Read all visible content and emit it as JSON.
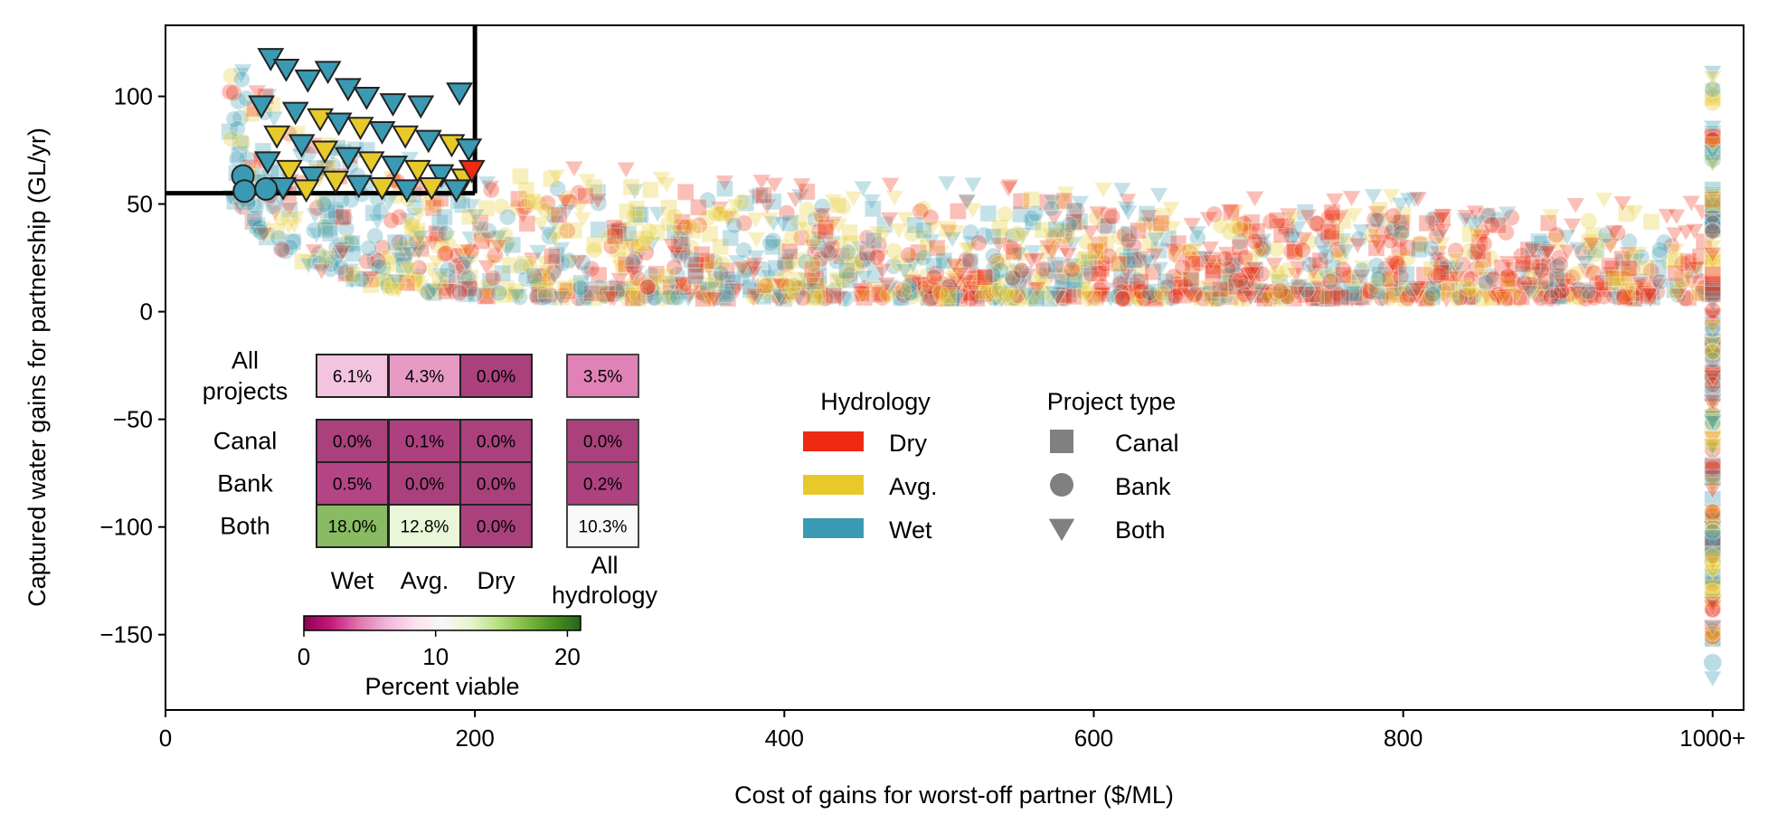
{
  "chart_data": {
    "type": "scatter",
    "title": "",
    "xlabel": "Cost of gains for worst-off partner ($/ML)",
    "ylabel": "Captured water gains for partnership (GL/yr)",
    "xlim": [
      0,
      1020
    ],
    "ylim": [
      -185,
      133
    ],
    "x_ticks": [
      0,
      200,
      400,
      600,
      800,
      1000
    ],
    "x_tick_labels": [
      "0",
      "200",
      "400",
      "600",
      "800",
      "1000+"
    ],
    "y_ticks": [
      -150,
      -100,
      -50,
      0,
      50,
      100
    ],
    "y_tick_labels": [
      "−150",
      "−100",
      "−50",
      "0",
      "50",
      "100"
    ],
    "grid": false,
    "thresholds": {
      "max_cost": 200,
      "min_gain": 55
    },
    "colors": {
      "Dry": "#ee2a12",
      "Avg.": "#e8c92a",
      "Wet": "#3a9ab3"
    },
    "hydrology_legend": {
      "title": "Hydrology",
      "entries": [
        "Dry",
        "Avg.",
        "Wet"
      ]
    },
    "project_type_legend": {
      "title": "Project type",
      "entries": [
        {
          "label": "Canal",
          "marker": "square"
        },
        {
          "label": "Bank",
          "marker": "circle"
        },
        {
          "label": "Both",
          "marker": "triangle-down"
        }
      ]
    },
    "series_note_markers": {
      "Canal": "square",
      "Bank": "circle",
      "Both": "triangle-down"
    },
    "highlighted_points": [
      {
        "x": 68,
        "y": 118,
        "hydro": "Wet",
        "type": "Both"
      },
      {
        "x": 78,
        "y": 113,
        "hydro": "Wet",
        "type": "Both"
      },
      {
        "x": 92,
        "y": 108,
        "hydro": "Wet",
        "type": "Both"
      },
      {
        "x": 105,
        "y": 112,
        "hydro": "Wet",
        "type": "Both"
      },
      {
        "x": 118,
        "y": 104,
        "hydro": "Wet",
        "type": "Both"
      },
      {
        "x": 130,
        "y": 100,
        "hydro": "Wet",
        "type": "Both"
      },
      {
        "x": 147,
        "y": 97,
        "hydro": "Wet",
        "type": "Both"
      },
      {
        "x": 165,
        "y": 96,
        "hydro": "Wet",
        "type": "Both"
      },
      {
        "x": 190,
        "y": 102,
        "hydro": "Wet",
        "type": "Both"
      },
      {
        "x": 62,
        "y": 96,
        "hydro": "Wet",
        "type": "Both"
      },
      {
        "x": 84,
        "y": 93,
        "hydro": "Wet",
        "type": "Both"
      },
      {
        "x": 100,
        "y": 90,
        "hydro": "Avg.",
        "type": "Both"
      },
      {
        "x": 112,
        "y": 88,
        "hydro": "Wet",
        "type": "Both"
      },
      {
        "x": 126,
        "y": 86,
        "hydro": "Avg.",
        "type": "Both"
      },
      {
        "x": 140,
        "y": 84,
        "hydro": "Wet",
        "type": "Both"
      },
      {
        "x": 155,
        "y": 82,
        "hydro": "Avg.",
        "type": "Both"
      },
      {
        "x": 170,
        "y": 80,
        "hydro": "Wet",
        "type": "Both"
      },
      {
        "x": 185,
        "y": 78,
        "hydro": "Avg.",
        "type": "Both"
      },
      {
        "x": 196,
        "y": 76,
        "hydro": "Wet",
        "type": "Both"
      },
      {
        "x": 72,
        "y": 82,
        "hydro": "Avg.",
        "type": "Both"
      },
      {
        "x": 88,
        "y": 78,
        "hydro": "Wet",
        "type": "Both"
      },
      {
        "x": 103,
        "y": 75,
        "hydro": "Avg.",
        "type": "Both"
      },
      {
        "x": 118,
        "y": 72,
        "hydro": "Wet",
        "type": "Both"
      },
      {
        "x": 133,
        "y": 70,
        "hydro": "Avg.",
        "type": "Both"
      },
      {
        "x": 148,
        "y": 68,
        "hydro": "Wet",
        "type": "Both"
      },
      {
        "x": 163,
        "y": 66,
        "hydro": "Avg.",
        "type": "Both"
      },
      {
        "x": 178,
        "y": 64,
        "hydro": "Wet",
        "type": "Both"
      },
      {
        "x": 193,
        "y": 62,
        "hydro": "Avg.",
        "type": "Both"
      },
      {
        "x": 66,
        "y": 70,
        "hydro": "Wet",
        "type": "Both"
      },
      {
        "x": 80,
        "y": 66,
        "hydro": "Avg.",
        "type": "Both"
      },
      {
        "x": 95,
        "y": 63,
        "hydro": "Wet",
        "type": "Both"
      },
      {
        "x": 110,
        "y": 61,
        "hydro": "Avg.",
        "type": "Both"
      },
      {
        "x": 125,
        "y": 59,
        "hydro": "Wet",
        "type": "Both"
      },
      {
        "x": 140,
        "y": 58,
        "hydro": "Avg.",
        "type": "Both"
      },
      {
        "x": 156,
        "y": 57,
        "hydro": "Wet",
        "type": "Both"
      },
      {
        "x": 172,
        "y": 58,
        "hydro": "Avg.",
        "type": "Both"
      },
      {
        "x": 188,
        "y": 57,
        "hydro": "Wet",
        "type": "Both"
      },
      {
        "x": 198,
        "y": 66,
        "hydro": "Dry",
        "type": "Both"
      },
      {
        "x": 76,
        "y": 58,
        "hydro": "Wet",
        "type": "Both"
      },
      {
        "x": 91,
        "y": 57,
        "hydro": "Avg.",
        "type": "Both"
      },
      {
        "x": 50,
        "y": 63,
        "hydro": "Wet",
        "type": "Bank"
      },
      {
        "x": 51,
        "y": 56,
        "hydro": "Wet",
        "type": "Bank"
      },
      {
        "x": 65,
        "y": 57,
        "hydro": "Wet",
        "type": "Bank"
      }
    ],
    "heatmap": {
      "row_labels": [
        "All\nprojects",
        "Canal",
        "Bank",
        "Both"
      ],
      "col_labels": [
        "Wet",
        "Avg.",
        "Dry"
      ],
      "all_col_label": "All\nhydrology",
      "values": [
        [
          6.1,
          4.3,
          0.0
        ],
        [
          0.0,
          0.1,
          0.0
        ],
        [
          0.5,
          0.0,
          0.0
        ],
        [
          18.0,
          12.8,
          0.0
        ]
      ],
      "all_values": [
        3.5,
        0.0,
        0.2,
        10.3
      ],
      "cell_labels": [
        [
          "6.1%",
          "4.3%",
          "0.0%"
        ],
        [
          "0.0%",
          "0.1%",
          "0.0%"
        ],
        [
          "0.5%",
          "0.0%",
          "0.0%"
        ],
        [
          "18.0%",
          "12.8%",
          "0.0%"
        ]
      ],
      "all_labels": [
        "3.5%",
        "0.0%",
        "0.2%",
        "10.3%"
      ],
      "colorbar": {
        "label": "Percent viable",
        "range": [
          0,
          21
        ],
        "ticks": [
          0,
          10,
          20
        ],
        "tick_labels": [
          "0",
          "10",
          "20"
        ]
      }
    }
  }
}
